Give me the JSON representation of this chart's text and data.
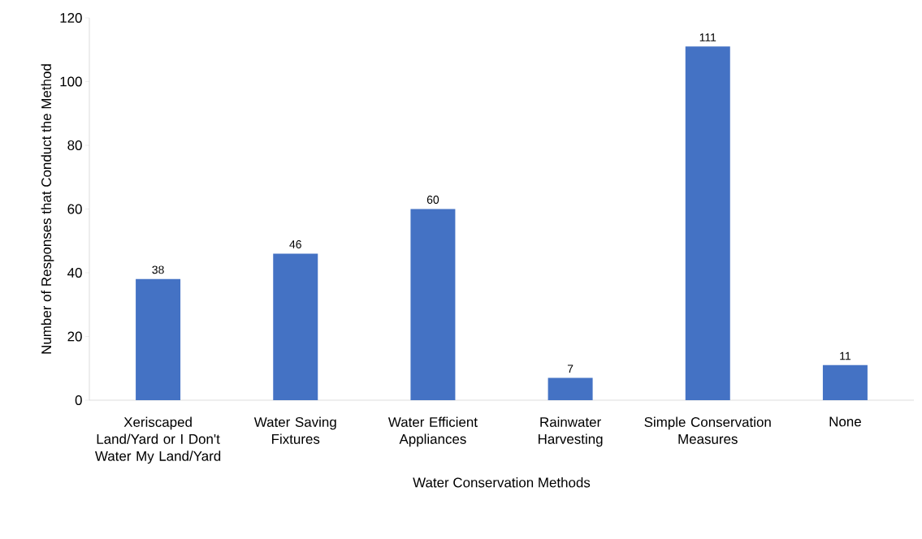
{
  "chart_data": {
    "type": "bar",
    "xlabel": "Water Conservation Methods",
    "ylabel": "Number of Responses that Conduct the Method",
    "categories": [
      "Xeriscaped Land/Yard or I Don't Water My Land/Yard",
      "Water Saving Fixtures",
      "Water Efficient Appliances",
      "Rainwater Harvesting",
      "Simple Conservation Measures",
      "None"
    ],
    "values": [
      38,
      46,
      60,
      7,
      111,
      11
    ],
    "color": "#4472c4",
    "data_labels": true,
    "ylim": [
      0,
      120
    ],
    "yticks": [
      0,
      20,
      40,
      60,
      80,
      100,
      120
    ],
    "grid": false
  }
}
